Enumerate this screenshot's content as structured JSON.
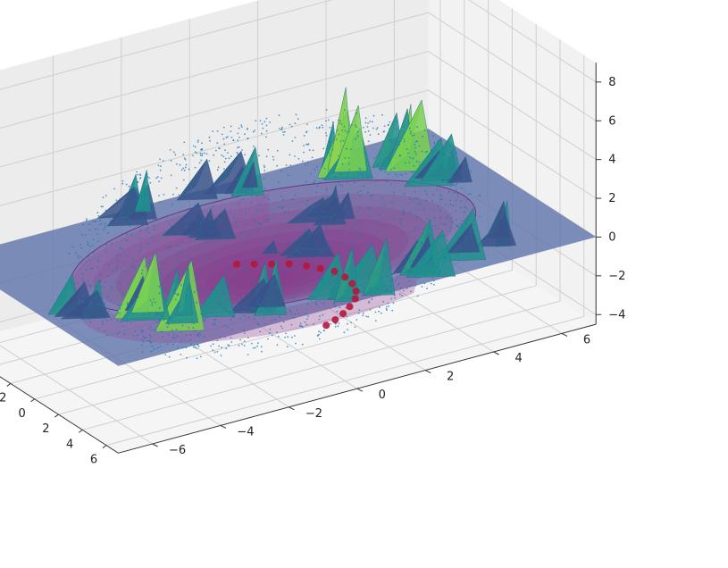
{
  "chart_data": {
    "type": "surface3d",
    "title": "",
    "xlabel": "",
    "ylabel": "",
    "zlabel": "",
    "xlim": [
      -7,
      7
    ],
    "ylim": [
      -7,
      7
    ],
    "zlim": [
      -4.5,
      9
    ],
    "x_ticks": [
      "−6",
      "−4",
      "−2",
      "0",
      "2",
      "4",
      "6"
    ],
    "y_ticks": [
      "−6",
      "−4",
      "−2",
      "0",
      "2",
      "4",
      "6"
    ],
    "z_ticks": [
      "−4",
      "−2",
      "0",
      "2",
      "4",
      "6",
      "8"
    ],
    "grid": true,
    "colors": {
      "plane": "#5a6fa8",
      "bowl": "#8a3f8c",
      "peaks_low": "#3b528b",
      "peaks_mid": "#21908d",
      "peaks_high": "#fde725",
      "scatter": "#1f77b4",
      "path": "#b5173b",
      "pane": "#f2f2f2",
      "grid": "#cfcfcf"
    },
    "surface_plane": {
      "z": 0
    },
    "bowl": {
      "radius": 5.6,
      "depth": -3.8
    },
    "peaks": [
      {
        "x": -5.5,
        "y": 4.5,
        "z": 4.0
      },
      {
        "x": -4.5,
        "y": 5.2,
        "z": 3.2
      },
      {
        "x": -2.2,
        "y": 6.2,
        "z": 2.0
      },
      {
        "x": -6.2,
        "y": 1.0,
        "z": 2.2
      },
      {
        "x": -6.4,
        "y": -1.5,
        "z": 2.0
      },
      {
        "x": 4.8,
        "y": 4.6,
        "z": 2.2
      },
      {
        "x": 5.8,
        "y": 2.6,
        "z": 2.5
      },
      {
        "x": 6.0,
        "y": 0.4,
        "z": 2.6
      },
      {
        "x": 5.4,
        "y": -2.0,
        "z": 2.4
      },
      {
        "x": 4.2,
        "y": -3.6,
        "z": 3.2
      },
      {
        "x": 2.6,
        "y": -4.8,
        "z": 2.8
      },
      {
        "x": 1.2,
        "y": -5.5,
        "z": 1.8
      },
      {
        "x": -1.5,
        "y": 2.0,
        "z": 1.5
      },
      {
        "x": -3.2,
        "y": -0.5,
        "z": 1.2
      },
      {
        "x": 0.8,
        "y": 0.5,
        "z": 1.0
      }
    ],
    "scatter": {
      "n_points": 1400,
      "shape": "sphere-like shell",
      "radius": 5.5
    },
    "path": [
      {
        "x": -2.2,
        "y": -0.3,
        "z": -1.6
      },
      {
        "x": -1.6,
        "y": 0.0,
        "z": -1.5
      },
      {
        "x": -1.0,
        "y": 0.3,
        "z": -1.4
      },
      {
        "x": -0.4,
        "y": 0.6,
        "z": -1.3
      },
      {
        "x": 0.2,
        "y": 0.9,
        "z": -1.3
      },
      {
        "x": 0.8,
        "y": 1.1,
        "z": -1.3
      },
      {
        "x": 1.4,
        "y": 1.3,
        "z": -1.3
      },
      {
        "x": 2.0,
        "y": 1.4,
        "z": -1.4
      },
      {
        "x": 2.6,
        "y": 1.4,
        "z": -1.5
      },
      {
        "x": 3.2,
        "y": 1.3,
        "z": -1.6
      },
      {
        "x": 3.7,
        "y": 1.1,
        "z": -1.7
      },
      {
        "x": 4.1,
        "y": 0.8,
        "z": -1.8
      },
      {
        "x": 4.4,
        "y": 0.5,
        "z": -1.9
      },
      {
        "x": 4.6,
        "y": 0.2,
        "z": -2.0
      },
      {
        "x": 4.7,
        "y": -0.1,
        "z": -2.1
      }
    ]
  }
}
